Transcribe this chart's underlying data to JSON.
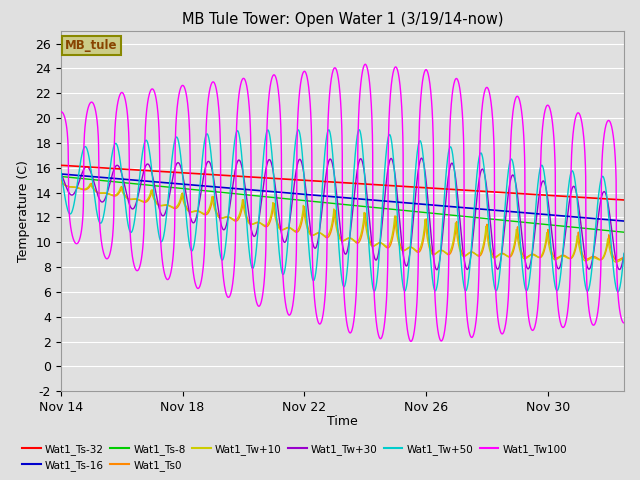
{
  "title": "MB Tule Tower: Open Water 1 (3/19/14-now)",
  "xlabel": "Time",
  "ylabel": "Temperature (C)",
  "xlim_days": [
    0,
    18.5
  ],
  "ylim": [
    -2,
    27
  ],
  "yticks": [
    -2,
    0,
    2,
    4,
    6,
    8,
    10,
    12,
    14,
    16,
    18,
    20,
    22,
    24,
    26
  ],
  "xtick_labels": [
    "Nov 14",
    "Nov 18",
    "Nov 22",
    "Nov 26",
    "Nov 30"
  ],
  "xtick_positions": [
    0,
    4,
    8,
    12,
    16
  ],
  "background_color": "#e0e0e0",
  "plot_bg_color": "#e0e0e0",
  "grid_color": "white",
  "series_colors": {
    "Wat1_Ts-32": "#ff0000",
    "Wat1_Ts-16": "#0000cc",
    "Wat1_Ts-8": "#00cc00",
    "Wat1_Ts0": "#ff8800",
    "Wat1_Tw+10": "#cccc00",
    "Wat1_Tw+30": "#9900cc",
    "Wat1_Tw+50": "#00cccc",
    "Wat1_Tw100": "#ff00ff"
  },
  "legend_box_facecolor": "#cccc88",
  "legend_box_edgecolor": "#888800",
  "legend_box_text": "MB_tule",
  "legend_text_color": "#884400",
  "figsize": [
    6.4,
    4.8
  ],
  "dpi": 100,
  "n_points": 2000
}
